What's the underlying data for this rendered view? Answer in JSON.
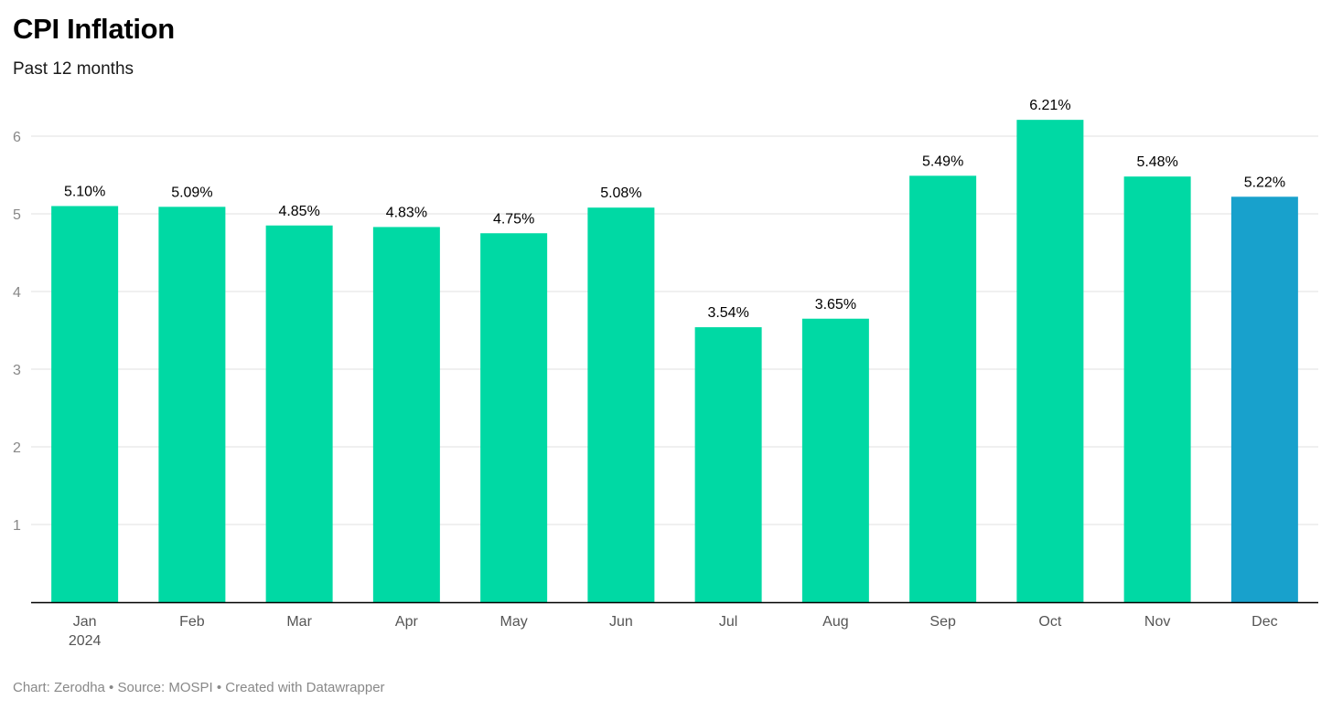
{
  "chart_data": {
    "type": "bar",
    "title": "CPI Inflation",
    "subtitle": "Past 12 months",
    "categories": [
      "Jan",
      "Feb",
      "Mar",
      "Apr",
      "May",
      "Jun",
      "Jul",
      "Aug",
      "Sep",
      "Oct",
      "Nov",
      "Dec"
    ],
    "category_sublabels": [
      "2024",
      "",
      "",
      "",
      "",
      "",
      "",
      "",
      "",
      "",
      "",
      ""
    ],
    "values": [
      5.1,
      5.09,
      4.85,
      4.83,
      4.75,
      5.08,
      3.54,
      3.65,
      5.49,
      6.21,
      5.48,
      5.22
    ],
    "value_labels": [
      "5.10%",
      "5.09%",
      "4.85%",
      "4.83%",
      "4.75%",
      "5.08%",
      "3.54%",
      "3.65%",
      "5.49%",
      "6.21%",
      "5.48%",
      "5.22%"
    ],
    "highlight_index": 11,
    "yticks": [
      "1",
      "2",
      "3",
      "4",
      "5",
      "6"
    ],
    "ylim": [
      0,
      6.5
    ],
    "grid": true,
    "colors": {
      "bar": "#00d9a4",
      "highlight": "#18a1cc",
      "grid": "#e2e2e2",
      "axis": "#000000",
      "tick_label": "#888888",
      "category_label": "#555555",
      "value_label": "#000000"
    }
  },
  "footer": {
    "chart_credit": "Chart: Zerodha",
    "separator": " • ",
    "source": "Source: MOSPI",
    "created_with": "Created with Datawrapper"
  }
}
